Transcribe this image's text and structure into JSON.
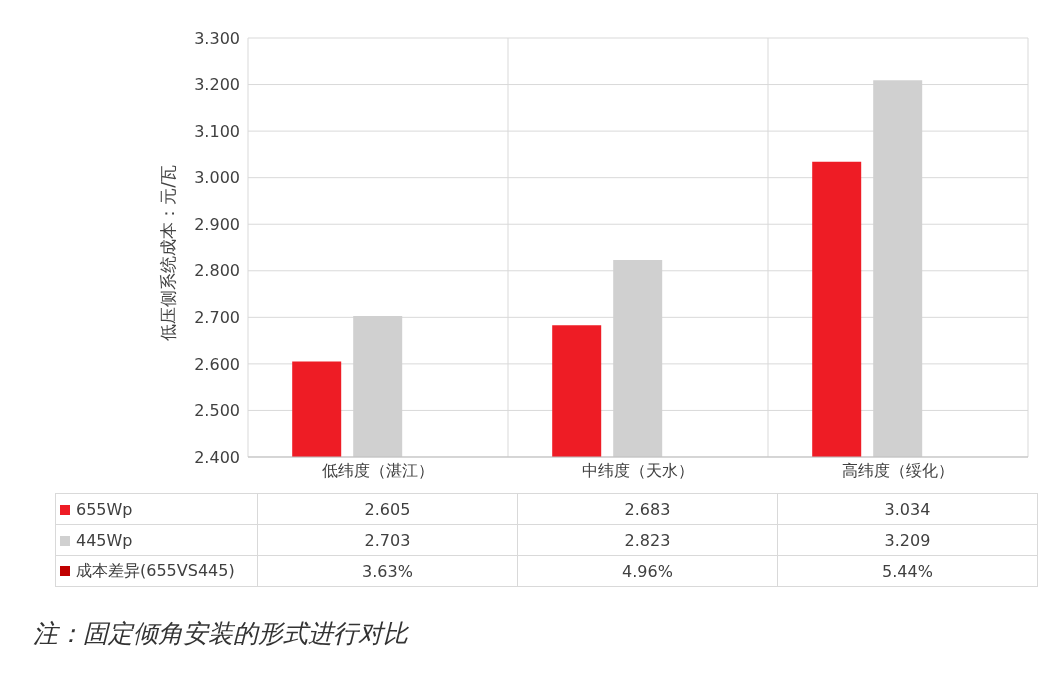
{
  "chart_data": {
    "type": "bar",
    "ylabel": "低压侧系统成本：元/瓦",
    "categories": [
      "低纬度（湛江）",
      "中纬度（天水）",
      "高纬度（绥化）"
    ],
    "series": [
      {
        "name": "655Wp",
        "color": "#ee1c25",
        "values": [
          2.605,
          2.683,
          3.034
        ],
        "value_labels": [
          "2.605",
          "2.683",
          "3.034"
        ]
      },
      {
        "name": "445Wp",
        "color": "#d0d0d0",
        "values": [
          2.703,
          2.823,
          3.209
        ],
        "value_labels": [
          "2.703",
          "2.823",
          "3.209"
        ]
      },
      {
        "name": "成本差异(655VS445)",
        "color": "#c00000",
        "values": [
          null,
          null,
          null
        ],
        "value_labels": [
          "3.63%",
          "4.96%",
          "5.44%"
        ]
      }
    ],
    "ylim": [
      2.4,
      3.3
    ],
    "yticks": [
      {
        "value": 2.4,
        "label": "2.400"
      },
      {
        "value": 2.5,
        "label": "2.500"
      },
      {
        "value": 2.6,
        "label": "2.600"
      },
      {
        "value": 2.7,
        "label": "2.700"
      },
      {
        "value": 2.8,
        "label": "2.800"
      },
      {
        "value": 2.9,
        "label": "2.900"
      },
      {
        "value": 3.0,
        "label": "3.000"
      },
      {
        "value": 3.1,
        "label": "3.100"
      },
      {
        "value": 3.2,
        "label": "3.200"
      },
      {
        "value": 3.3,
        "label": "3.300"
      }
    ],
    "grid": true,
    "legend": "bottom",
    "annotations": [
      "注：固定倾角安装的形式进行对比"
    ]
  }
}
